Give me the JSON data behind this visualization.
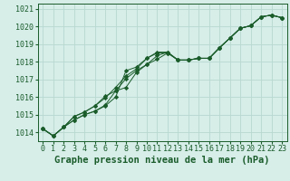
{
  "title": "Graphe pression niveau de la mer (hPa)",
  "background_color": "#d6ede8",
  "plot_bg_color": "#d6ede8",
  "grid_color": "#b8d8d0",
  "line_color": "#1a5c2a",
  "marker_color": "#1a5c2a",
  "x_values": [
    0,
    1,
    2,
    3,
    4,
    5,
    6,
    7,
    8,
    9,
    10,
    11,
    12,
    13,
    14,
    15,
    16,
    17,
    18,
    19,
    20,
    21,
    22,
    23
  ],
  "series": [
    [
      1014.2,
      1013.8,
      1014.3,
      1014.7,
      1015.0,
      1015.2,
      1015.5,
      1016.0,
      1017.5,
      1017.7,
      1018.2,
      1018.55,
      1018.55,
      1018.1,
      1018.1,
      1018.2,
      1018.2,
      1018.8,
      1019.35,
      1019.9,
      1020.05,
      1020.55,
      1020.65,
      1020.5
    ],
    [
      1014.2,
      1013.8,
      1014.3,
      1014.7,
      1015.0,
      1015.2,
      1015.55,
      1016.35,
      1017.05,
      1017.5,
      1017.85,
      1018.35,
      1018.55,
      1018.1,
      1018.1,
      1018.2,
      1018.2,
      1018.8,
      1019.35,
      1019.9,
      1020.05,
      1020.55,
      1020.65,
      1020.5
    ],
    [
      1014.2,
      1013.8,
      1014.3,
      1014.9,
      1015.15,
      1015.5,
      1016.05,
      1016.35,
      1016.55,
      1017.4,
      1017.85,
      1018.15,
      1018.5,
      1018.1,
      1018.1,
      1018.2,
      1018.2,
      1018.8,
      1019.35,
      1019.9,
      1020.05,
      1020.55,
      1020.65,
      1020.5
    ],
    [
      1014.2,
      1013.8,
      1014.3,
      1014.9,
      1015.15,
      1015.5,
      1015.95,
      1016.55,
      1017.2,
      1017.6,
      1018.2,
      1018.5,
      1018.5,
      1018.1,
      1018.1,
      1018.2,
      1018.2,
      1018.8,
      1019.35,
      1019.9,
      1020.05,
      1020.55,
      1020.65,
      1020.5
    ]
  ],
  "ylim": [
    1013.5,
    1021.3
  ],
  "yticks": [
    1014,
    1015,
    1016,
    1017,
    1018,
    1019,
    1020,
    1021
  ],
  "xticks": [
    0,
    1,
    2,
    3,
    4,
    5,
    6,
    7,
    8,
    9,
    10,
    11,
    12,
    13,
    14,
    15,
    16,
    17,
    18,
    19,
    20,
    21,
    22,
    23
  ],
  "title_fontsize": 7.5,
  "tick_fontsize": 6,
  "ylabel_fontsize": 6
}
